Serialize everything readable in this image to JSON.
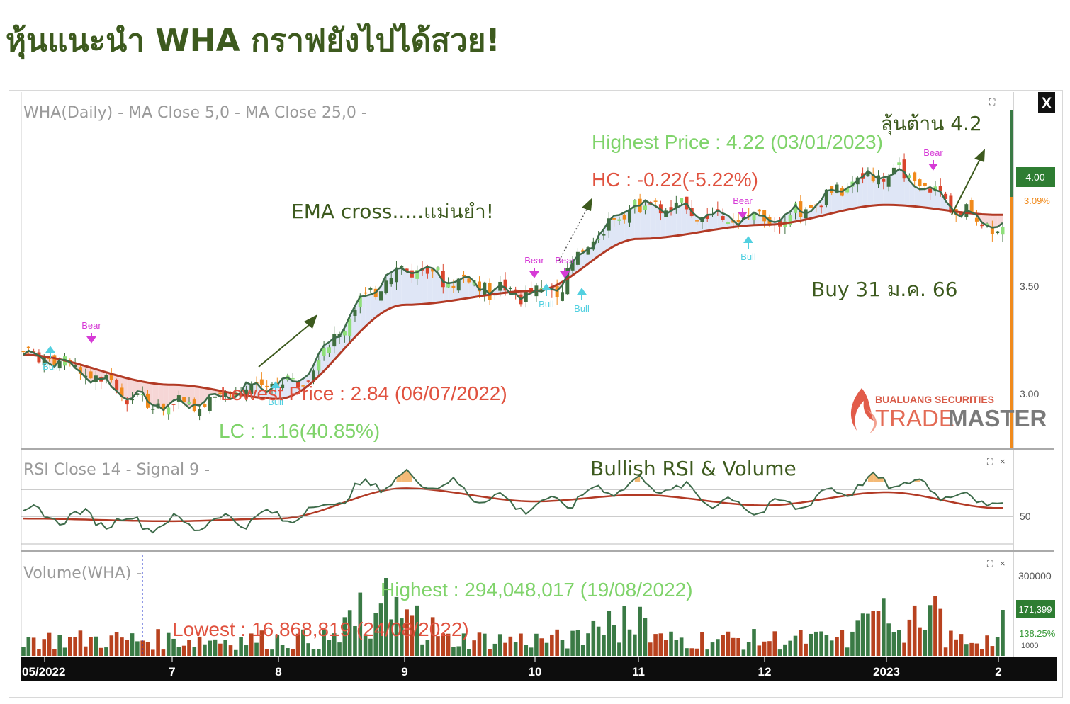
{
  "headline": "หุ้นแนะนำ WHA กราฟยังไปได้สวย!",
  "colors": {
    "bull_candle": "#3f6f3f",
    "bear_candle": "#d9442b",
    "ema_fast": "#3d6b4a",
    "ema_slow": "#b23a25",
    "volume_up": "#3a7a45",
    "volume_down": "#b8421f",
    "bull_signal": "#52d0e0",
    "bear_signal": "#d63bd6",
    "headline": "#3d5a1e"
  },
  "price_panel": {
    "legend": "WHA(Daily) - MA Close 5,0 - MA Close 25,0 -",
    "highest_label": "Highest Price : 4.22 (03/01/2023)",
    "hc_label": "HC : -0.22(-5.22%)",
    "lowest_label": "Lowest Price : 2.84 (06/07/2022)",
    "lc_label": "LC : 1.16(40.85%)",
    "last_price": "4.00",
    "last_change": "3.09%",
    "y_ticks": [
      "3.50",
      "3.00"
    ],
    "close_button": "X"
  },
  "annotations": {
    "ema_cross": "EMA cross.....แม่นยำ!",
    "resistance": "ลุ้นต้าน 4.2",
    "buy": "Buy 31 ม.ค. 66",
    "rsi_volume": "Bullish RSI & Volume"
  },
  "signals": {
    "bull": "Bull",
    "bear": "Bear"
  },
  "rsi_panel": {
    "legend": "RSI Close 14 - Signal 9 -",
    "y_tick": "50"
  },
  "volume_panel": {
    "legend": "Volume(WHA) -",
    "highest_label": "Highest : 294,048,017 (19/08/2022)",
    "lowest_label": "Lowest : 16,868,819 (24/08/2022)",
    "y_tick": "300000",
    "last_volume": "171,399",
    "ratio": "138.25%",
    "scale_label": "1000"
  },
  "time_axis": [
    "05/2022",
    "7",
    "8",
    "9",
    "10",
    "11",
    "12",
    "2023",
    "2"
  ],
  "logo": {
    "company": "BUALUANG SECURITIES",
    "product_a": "TRADE",
    "product_b": "MASTER"
  },
  "chart_data": {
    "type": "line",
    "title": "WHA(Daily)",
    "x": [
      "05/2022",
      "7",
      "8",
      "9",
      "10",
      "11",
      "12",
      "2023",
      "2"
    ],
    "series": [
      {
        "name": "MA Close 5,0",
        "values": [
          3.2,
          2.95,
          3.05,
          3.62,
          3.5,
          3.95,
          3.88,
          4.1,
          3.85
        ]
      },
      {
        "name": "MA Close 25,0",
        "values": [
          3.2,
          3.05,
          2.98,
          3.45,
          3.52,
          3.78,
          3.85,
          3.95,
          3.9
        ]
      }
    ],
    "ylim": [
      2.75,
      4.45
    ],
    "last_price": 4.0,
    "highest": {
      "value": 4.22,
      "date": "03/01/2023"
    },
    "lowest": {
      "value": 2.84,
      "date": "06/07/2022"
    },
    "rsi": {
      "name": "RSI Close 14",
      "signal_name": "Signal 9",
      "values": [
        45,
        38,
        43,
        72,
        52,
        68,
        50,
        70,
        55
      ],
      "signal_values": [
        42,
        40,
        42,
        65,
        55,
        60,
        52,
        62,
        50
      ],
      "reference_level": 50
    },
    "volume": {
      "highest": {
        "value": 294048017,
        "date": "19/08/2022"
      },
      "lowest": {
        "value": 16868819,
        "date": "24/08/2022"
      },
      "last": 171399,
      "ratio_percent": 138.25
    }
  }
}
